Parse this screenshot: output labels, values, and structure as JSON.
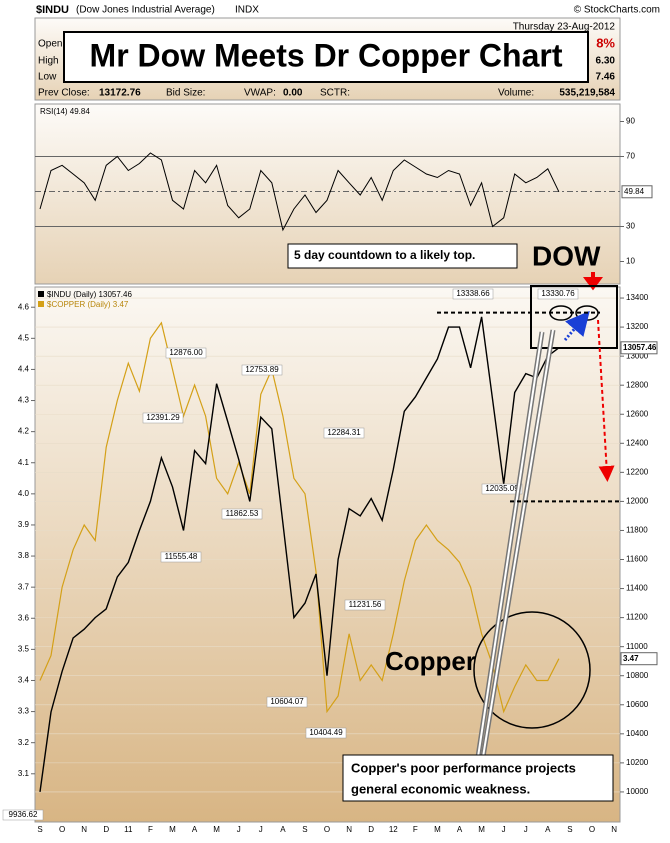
{
  "header": {
    "symbol": "$INDU",
    "name": "(Dow Jones Industrial Average)",
    "exchange": "INDX",
    "credit": "© StockCharts.com",
    "date": "Thursday  23-Aug-2012",
    "labels": [
      "Open",
      "High",
      "Low"
    ],
    "partial_values": [
      "8%",
      "6.30",
      "7.46"
    ],
    "prev_close_label": "Prev Close:",
    "prev_close": "13172.76",
    "bid_size": "Bid Size:",
    "vwap_label": "VWAP:",
    "vwap": "0.00",
    "sctr": "SCTR:",
    "volume_label": "Volume:",
    "volume": "535,219,584",
    "title": "Mr Dow Meets Dr Copper Chart"
  },
  "chart_data": [
    {
      "type": "line",
      "series": [
        {
          "name": "RSI(14) 49.84",
          "color": "#000000",
          "values": [
            40,
            62,
            65,
            60,
            55,
            45,
            65,
            70,
            62,
            66,
            72,
            68,
            45,
            40,
            62,
            55,
            65,
            42,
            35,
            40,
            62,
            55,
            28,
            40,
            48,
            38,
            45,
            62,
            55,
            48,
            58,
            45,
            62,
            68,
            64,
            60,
            58,
            62,
            60,
            42,
            55,
            30,
            35,
            60,
            55,
            58,
            63,
            49.84
          ]
        }
      ],
      "ylim": [
        0,
        100
      ],
      "yticks": [
        10,
        30,
        70,
        90
      ],
      "reference_lines": [
        30,
        50,
        70
      ]
    },
    {
      "type": "line",
      "categories": [
        "S",
        null,
        "O",
        null,
        "N",
        null,
        "D",
        null,
        "11",
        null,
        "F",
        null,
        "M",
        null,
        "A",
        null,
        "M",
        null,
        "J",
        null,
        "J",
        null,
        "A",
        null,
        "S",
        null,
        "O",
        null,
        "N",
        null,
        "D",
        null,
        "12",
        null,
        "F",
        null,
        "M",
        null,
        "A",
        null,
        "M",
        null,
        "J",
        null,
        "J",
        null,
        "A",
        null,
        "S",
        null,
        "O",
        null,
        "N"
      ],
      "series": [
        {
          "name": "$INDU (Daily) 13057.46",
          "color": "#000000",
          "axis": "y2",
          "values": [
            10000,
            10550,
            10830,
            11060,
            11120,
            11200,
            11260,
            11480,
            11580,
            11800,
            12000,
            12300,
            12100,
            11800,
            12350,
            12260,
            12810,
            12550,
            12290,
            12000,
            12580,
            12500,
            11850,
            11200,
            11300,
            11500,
            10800,
            11600,
            11950,
            11900,
            12020,
            11870,
            12220,
            12620,
            12720,
            12850,
            12980,
            13200,
            13200,
            12920,
            13270,
            12700,
            12120,
            12750,
            12880,
            12850,
            13000,
            13057.46,
            null,
            null,
            null,
            null,
            null
          ]
        },
        {
          "name": "$COPPER (Daily) 3.47",
          "color": "#d4a017",
          "values": [
            3.4,
            3.48,
            3.7,
            3.82,
            3.9,
            3.85,
            4.15,
            4.3,
            4.42,
            4.33,
            4.5,
            4.55,
            4.4,
            4.25,
            4.35,
            4.25,
            4.05,
            4.0,
            4.1,
            4.0,
            4.32,
            4.4,
            4.25,
            4.05,
            4.0,
            3.75,
            3.3,
            3.35,
            3.55,
            3.4,
            3.45,
            3.4,
            3.55,
            3.72,
            3.85,
            3.9,
            3.85,
            3.82,
            3.78,
            3.7,
            3.55,
            3.45,
            3.3,
            3.38,
            3.45,
            3.4,
            3.4,
            3.47,
            null,
            null,
            null,
            null,
            null
          ]
        }
      ],
      "ylim": [
        2.945,
        4.665
      ],
      "yticks": [
        3.1,
        3.2,
        3.3,
        3.4,
        3.5,
        3.6,
        3.7,
        3.8,
        3.9,
        {
          "value": 4,
          "label": "4.0"
        },
        4.1,
        4.2,
        4.3,
        4.4,
        4.5,
        4.6
      ],
      "y2lim": [
        9793,
        13476
      ],
      "y2ticks": [
        10000,
        10200,
        10400,
        10600,
        10800,
        11000,
        11200,
        11400,
        11600,
        11800,
        12000,
        12200,
        12400,
        12600,
        12800,
        13000,
        13200,
        13400
      ],
      "point_labels": [
        13338.66,
        13330.76,
        {
          "value": 12876,
          "label": "12876.00"
        },
        12753.89,
        12391.29,
        12284.31,
        11862.53,
        11555.48,
        12035.09,
        11231.56,
        10604.07,
        10404.49,
        9936.62
      ],
      "levels": [
        13300,
        12000
      ],
      "annotations": [
        "5 day countdown to a likely top.",
        "DOW",
        "Copper",
        "Copper's poor performance projects",
        "general economic weakness."
      ]
    }
  ]
}
